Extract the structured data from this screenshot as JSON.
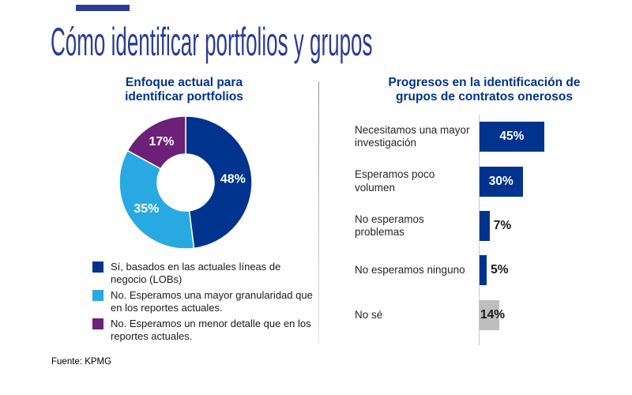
{
  "page": {
    "title": "Cómo identificar portfolios y grupos",
    "source": "Fuente: KPMG"
  },
  "colors": {
    "brand_blue": "#00338D",
    "light_blue": "#29A9E1",
    "purple": "#6D2077",
    "gray_bar": "#BEBEBE",
    "title_blue": "#2B3C97",
    "value_dark": "#1a1a1a",
    "value_light": "#ffffff"
  },
  "chart_data": [
    {
      "type": "pie",
      "subtype": "donut",
      "title": "Enfoque actual para identificar portfolios",
      "title_lines": [
        "Enfoque actual para",
        "identificar portfolios"
      ],
      "start_angle_deg": 0,
      "direction": "clockwise",
      "slices": [
        {
          "label": "48%",
          "value": 48,
          "color": "#00338D",
          "legend": "Sí, basados en las actuales líneas de negocio (LOBs)"
        },
        {
          "label": "35%",
          "value": 35,
          "color": "#29A9E1",
          "legend": "No. Esperamos una mayor granularidad que en los reportes actuales."
        },
        {
          "label": "17%",
          "value": 17,
          "color": "#6D2077",
          "legend": "No. Esperamos un menor detalle que en los reportes actuales."
        }
      ]
    },
    {
      "type": "bar",
      "orientation": "horizontal",
      "title": "Progresos en la identificación de grupos de contratos onerosos",
      "title_lines": [
        "Progresos en la identificación de",
        "grupos de contratos onerosos"
      ],
      "xlim": [
        0,
        50
      ],
      "grid": false,
      "legend_position": "none",
      "bars": [
        {
          "label": "Necesitamos una mayor investigación",
          "value": 45,
          "display": "45%",
          "color": "#00338D",
          "value_position": "inside",
          "value_color": "#ffffff"
        },
        {
          "label": "Esperamos poco volumen",
          "value": 30,
          "display": "30%",
          "color": "#00338D",
          "value_position": "inside",
          "value_color": "#ffffff"
        },
        {
          "label": "No esperamos problemas",
          "value": 7,
          "display": "7%",
          "color": "#00338D",
          "value_position": "outside",
          "value_color": "#1a1a1a"
        },
        {
          "label": "No esperamos ninguno",
          "value": 5,
          "display": "5%",
          "color": "#00338D",
          "value_position": "outside",
          "value_color": "#1a1a1a"
        },
        {
          "label": "No sé",
          "value": 14,
          "display": "14%",
          "color": "#BEBEBE",
          "value_position": "overlap",
          "value_color": "#1a1a1a"
        }
      ]
    }
  ]
}
